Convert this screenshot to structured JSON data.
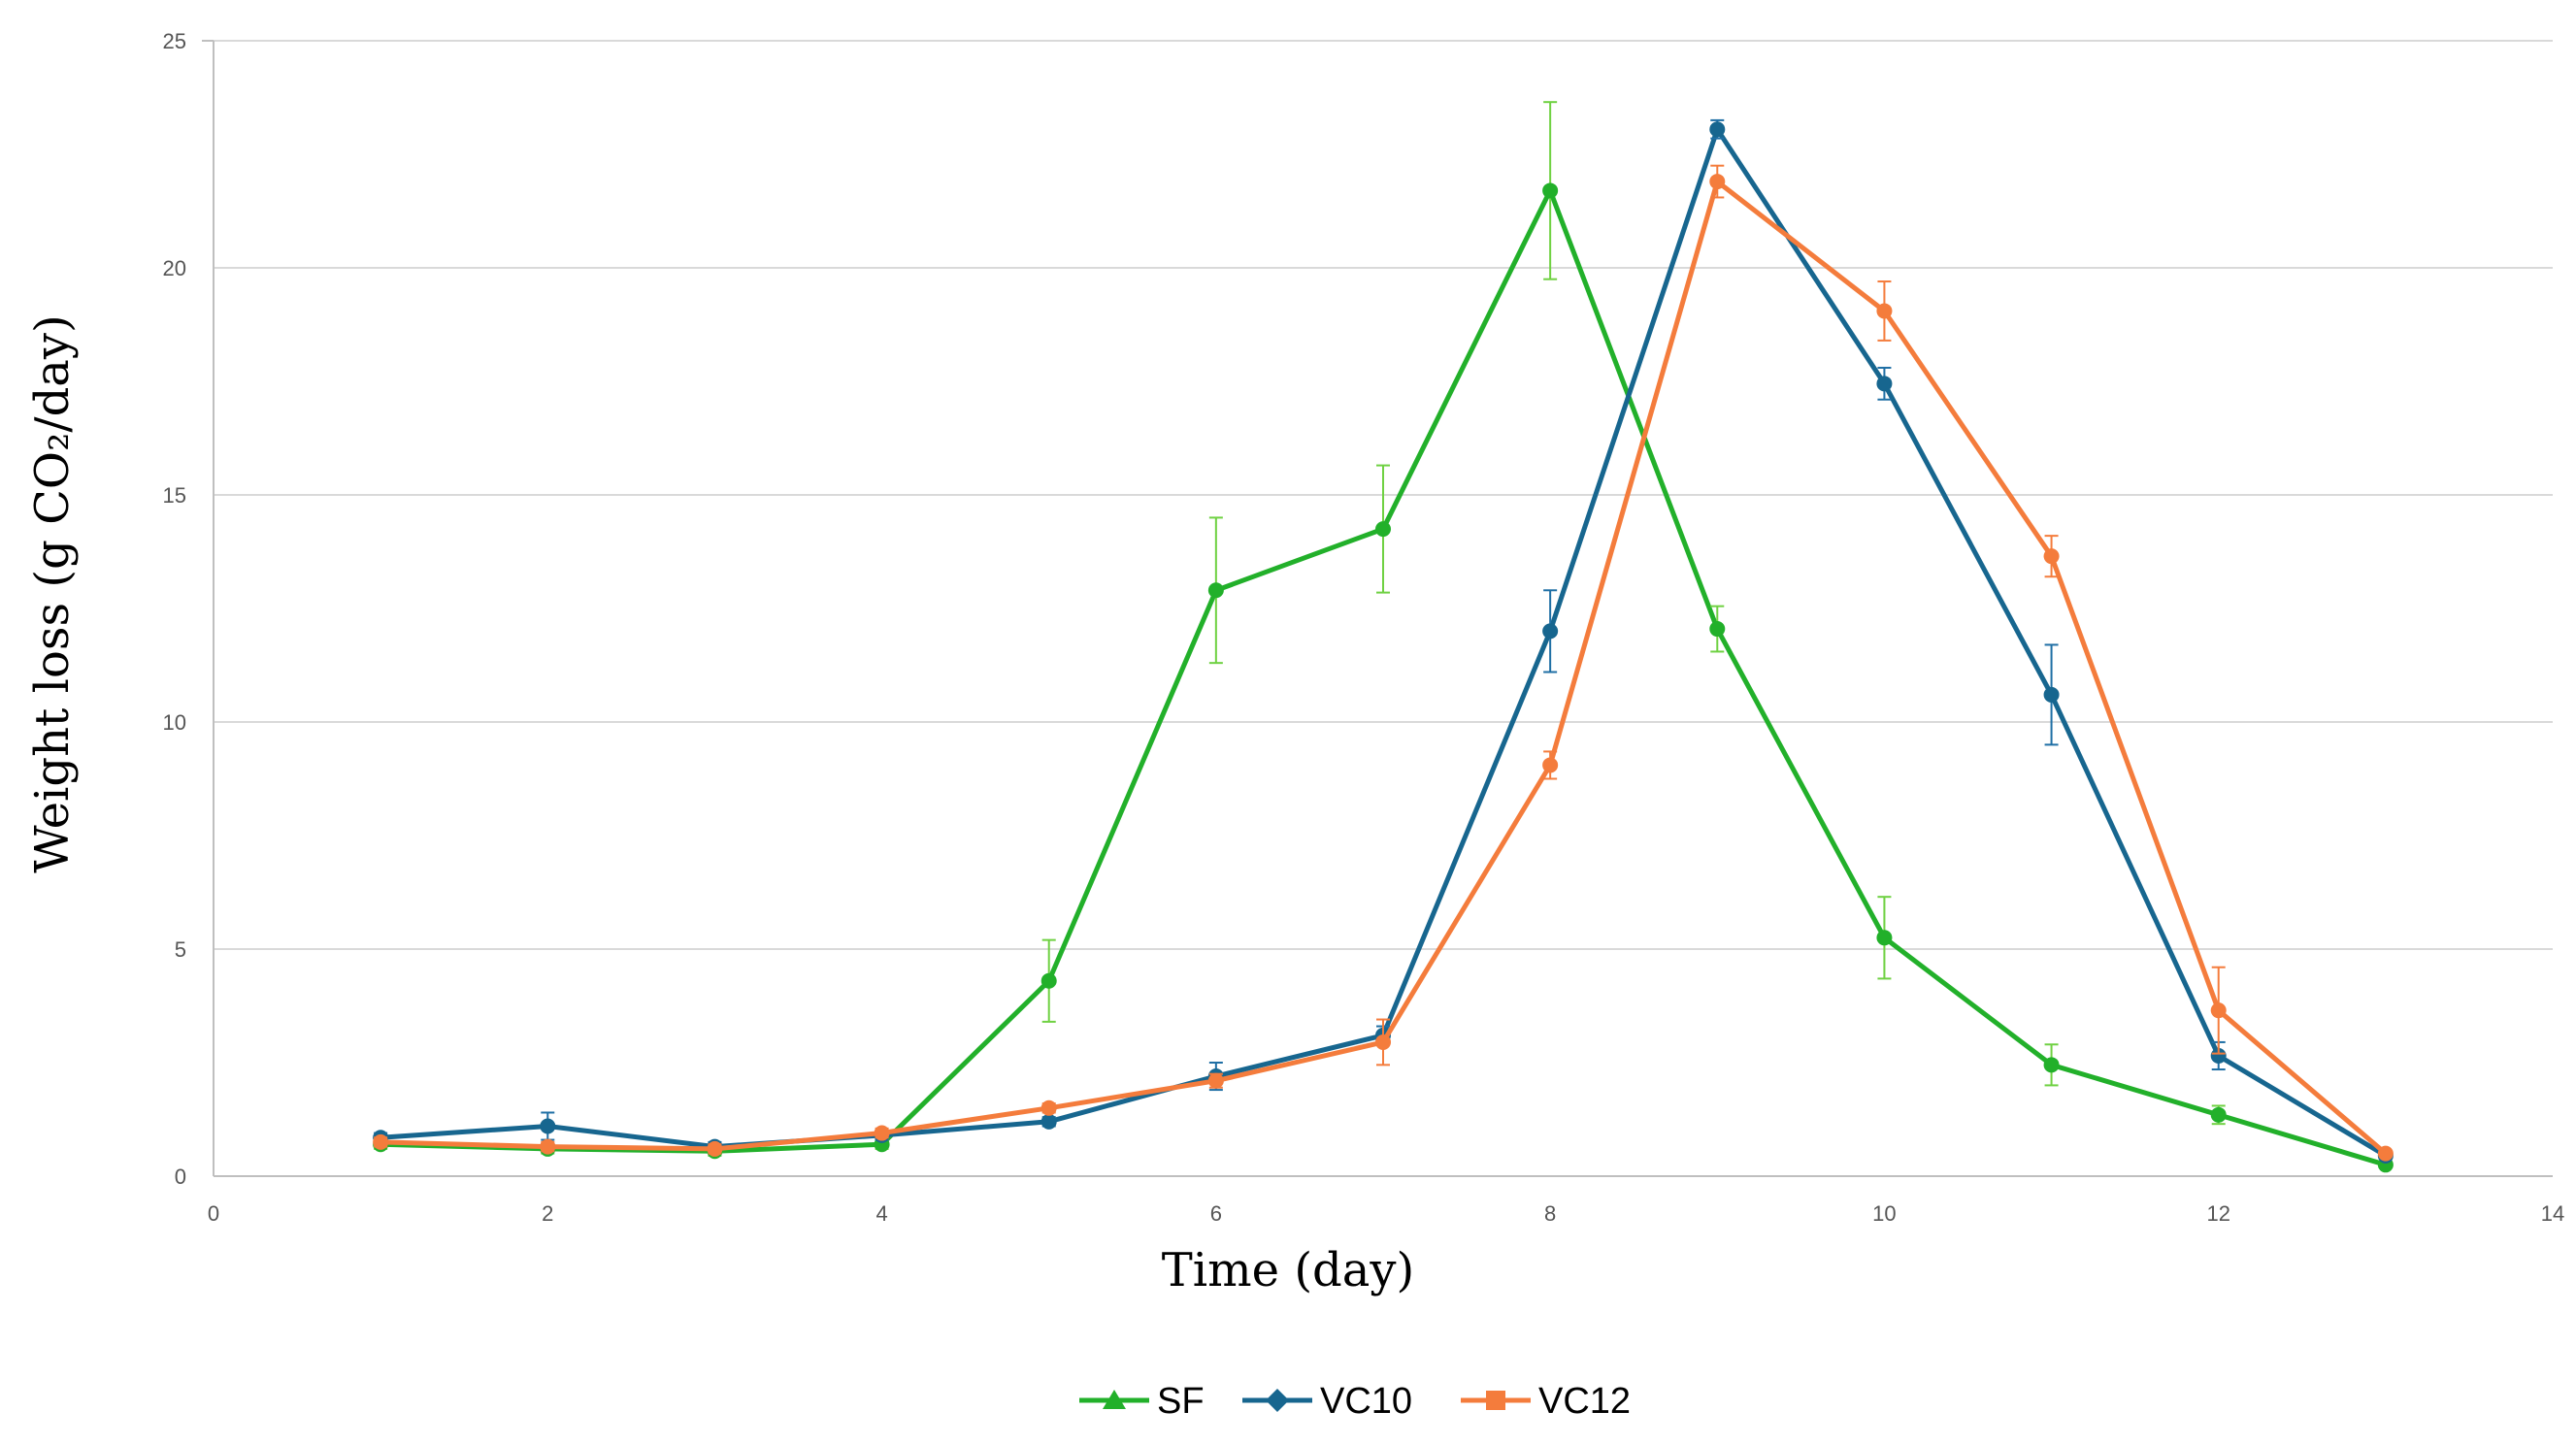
{
  "chart_data": {
    "type": "line",
    "title": "",
    "xlabel": "Time (day)",
    "ylabel": "Weight loss (g CO₂/day)",
    "xlim": [
      0,
      14
    ],
    "ylim": [
      0,
      25
    ],
    "xticks": [
      0,
      2,
      4,
      6,
      8,
      10,
      12,
      14
    ],
    "yticks": [
      0,
      5,
      10,
      15,
      20,
      25
    ],
    "grid": "horizontal",
    "legend_position": "bottom",
    "x": [
      1,
      2,
      3,
      4,
      5,
      6,
      7,
      8,
      9,
      10,
      11,
      12,
      13
    ],
    "series": [
      {
        "name": "SF",
        "color": "#22b02a",
        "error_color": "#6fd142",
        "marker": "triangle",
        "values": [
          0.7,
          0.6,
          0.55,
          0.7,
          4.3,
          12.9,
          14.25,
          21.7,
          12.05,
          5.25,
          2.45,
          1.35,
          0.25
        ],
        "errors": [
          0.1,
          0.1,
          0.1,
          0.1,
          0.9,
          1.6,
          1.4,
          1.95,
          0.5,
          0.9,
          0.45,
          0.2,
          0.05
        ]
      },
      {
        "name": "VC10",
        "color": "#17668f",
        "error_color": "#1f6fa5",
        "marker": "diamond",
        "values": [
          0.85,
          1.1,
          0.65,
          0.9,
          1.2,
          2.2,
          3.1,
          12.0,
          23.05,
          17.45,
          10.6,
          2.65,
          0.45
        ],
        "errors": [
          0.1,
          0.3,
          0.1,
          0.1,
          0.1,
          0.3,
          0.2,
          0.9,
          0.2,
          0.35,
          1.1,
          0.3,
          0.05
        ]
      },
      {
        "name": "VC12",
        "color": "#f47c3c",
        "error_color": "#f47c3c",
        "marker": "square",
        "values": [
          0.75,
          0.65,
          0.6,
          0.95,
          1.5,
          2.1,
          2.95,
          9.05,
          21.9,
          19.05,
          13.65,
          3.65,
          0.5
        ],
        "errors": [
          0.1,
          0.1,
          0.1,
          0.1,
          0.1,
          0.15,
          0.5,
          0.3,
          0.35,
          0.65,
          0.45,
          0.95,
          0.05
        ]
      }
    ]
  }
}
